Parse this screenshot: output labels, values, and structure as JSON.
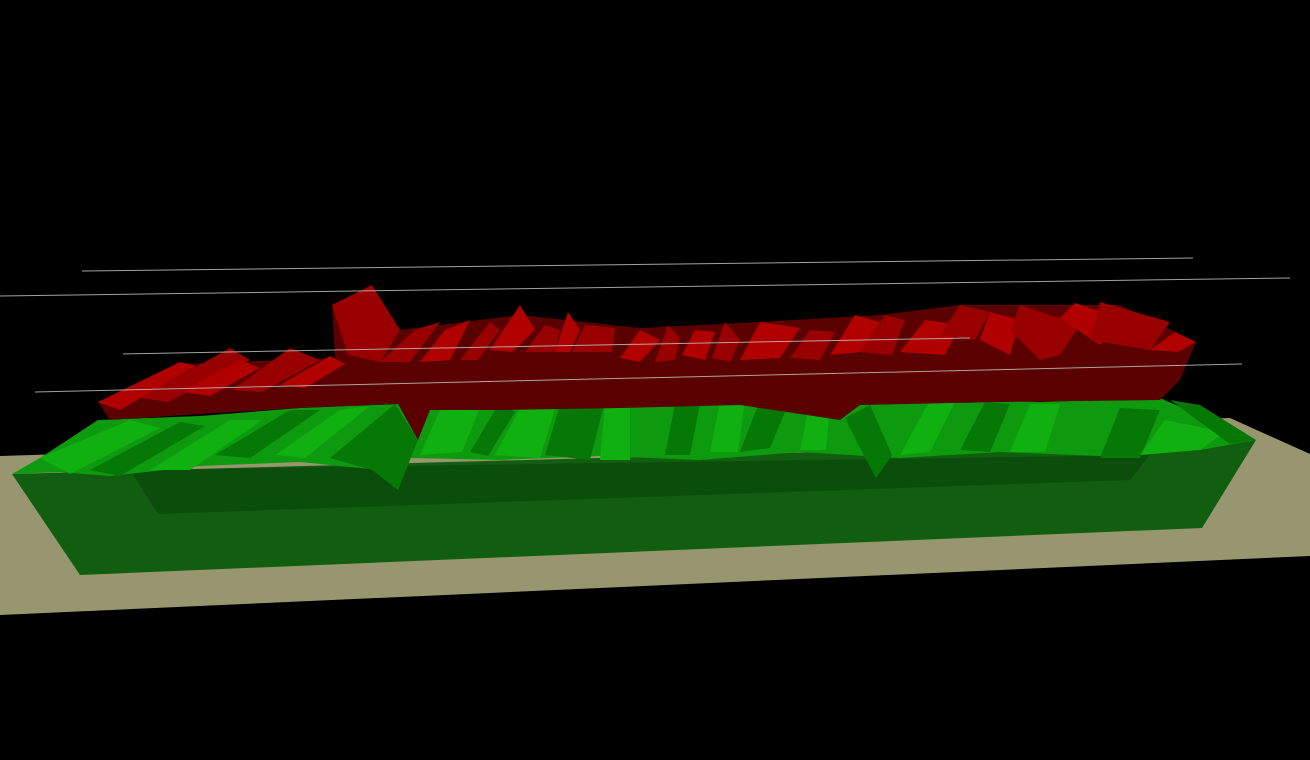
{
  "scene": {
    "view": "3d-perspective",
    "background_color": "#000000",
    "ground": {
      "color": "#97966F"
    },
    "lower_volume": {
      "top_color": "#0E9A0E",
      "top_highlight_color": "#10B010",
      "top_shadow_color": "#067806",
      "side_color": "#115E11",
      "inner_side_color": "#0B4D0B"
    },
    "upper_volume": {
      "top_color": "#990000",
      "top_highlight_color": "#B00000",
      "top_shadow_color": "#6E0000",
      "side_color": "#5A0000",
      "front_color": "#660000"
    },
    "guide_lines": {
      "color": "#BFBFBF",
      "count": 4
    }
  }
}
